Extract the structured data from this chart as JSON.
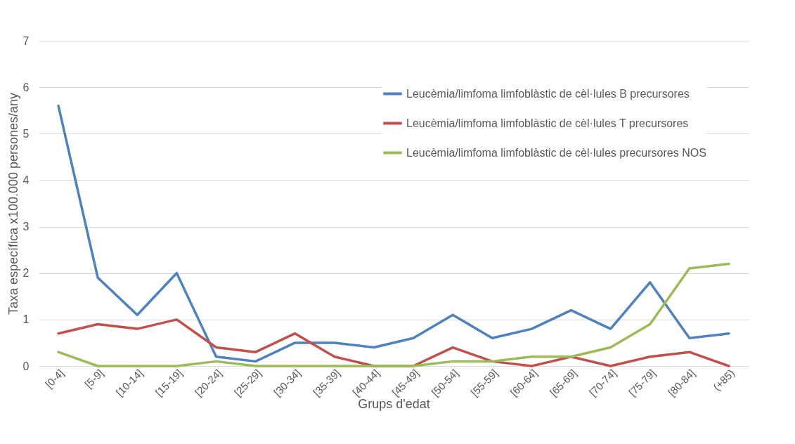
{
  "chart_data": {
    "type": "line",
    "xlabel": "Grups d'edat",
    "ylabel": "Taxa específica x100.000 persones/any",
    "categories": [
      "[0-4]",
      "[5-9]",
      "[10-14]",
      "[15-19]",
      "[20-24]",
      "[25-29]",
      "[30-34]",
      "[35-39]",
      "[40-44]",
      "[45-49]",
      "[50-54]",
      "[55-59]",
      "[60-64]",
      "[65-69]",
      "[70-74]",
      "[75-79]",
      "[80-84]",
      "(+85)"
    ],
    "series": [
      {
        "name": "Leucèmia/limfoma limfoblàstic de cèl·lules B precursores",
        "color": "#4f81bd",
        "values": [
          5.6,
          1.9,
          1.1,
          2.0,
          0.2,
          0.1,
          0.5,
          0.5,
          0.4,
          0.6,
          1.1,
          0.6,
          0.8,
          1.2,
          0.8,
          1.8,
          0.6,
          0.7
        ]
      },
      {
        "name": "Leucèmia/limfoma limfoblàstic de cèl·lules T precursores",
        "color": "#c0504d",
        "values": [
          0.7,
          0.9,
          0.8,
          1.0,
          0.4,
          0.3,
          0.7,
          0.2,
          0.0,
          0.0,
          0.4,
          0.1,
          0.0,
          0.2,
          0.0,
          0.2,
          0.3,
          0.0
        ]
      },
      {
        "name": "Leucèmia/limfoma limfoblàstic de cèl·lules precursores NOS",
        "color": "#9bbb59",
        "values": [
          0.3,
          0.0,
          0.0,
          0.0,
          0.1,
          0.0,
          0.0,
          0.0,
          0.0,
          0.0,
          0.1,
          0.1,
          0.2,
          0.2,
          0.4,
          0.9,
          2.1,
          2.2
        ]
      }
    ],
    "ylim": [
      0,
      7
    ],
    "yticks": [
      0,
      1,
      2,
      3,
      4,
      5,
      6,
      7
    ],
    "grid": "y",
    "legend": "top right"
  }
}
